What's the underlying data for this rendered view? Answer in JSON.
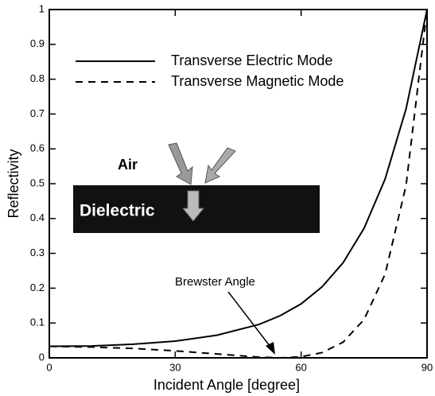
{
  "chart_data": {
    "type": "line",
    "xlabel": "Incident Angle [degree]",
    "ylabel": "Reflectivity",
    "x": [
      0,
      10,
      20,
      30,
      40,
      50,
      55,
      60,
      65,
      70,
      75,
      80,
      85,
      90
    ],
    "series": [
      {
        "name": "Transverse Electric Mode",
        "color": "#000000",
        "dash": false,
        "values": [
          0.033,
          0.034,
          0.039,
          0.048,
          0.065,
          0.096,
          0.121,
          0.155,
          0.204,
          0.273,
          0.372,
          0.513,
          0.715,
          1.0
        ]
      },
      {
        "name": "Transverse Magnetic Mode",
        "color": "#000000",
        "dash": true,
        "values": [
          0.033,
          0.031,
          0.027,
          0.02,
          0.011,
          0.002,
          0.0,
          0.003,
          0.015,
          0.045,
          0.11,
          0.24,
          0.495,
          1.0
        ]
      }
    ],
    "xlim": [
      0,
      90
    ],
    "xticks": [
      0,
      30,
      60,
      90
    ],
    "ylim": [
      0,
      1
    ],
    "yticks": [
      0,
      0.1,
      0.2,
      0.3,
      0.4,
      0.5,
      0.6,
      0.7,
      0.8,
      0.9,
      1
    ],
    "annotations": {
      "brewster": "Brewster Angle",
      "air": "Air",
      "dielectric": "Dielectric"
    }
  }
}
